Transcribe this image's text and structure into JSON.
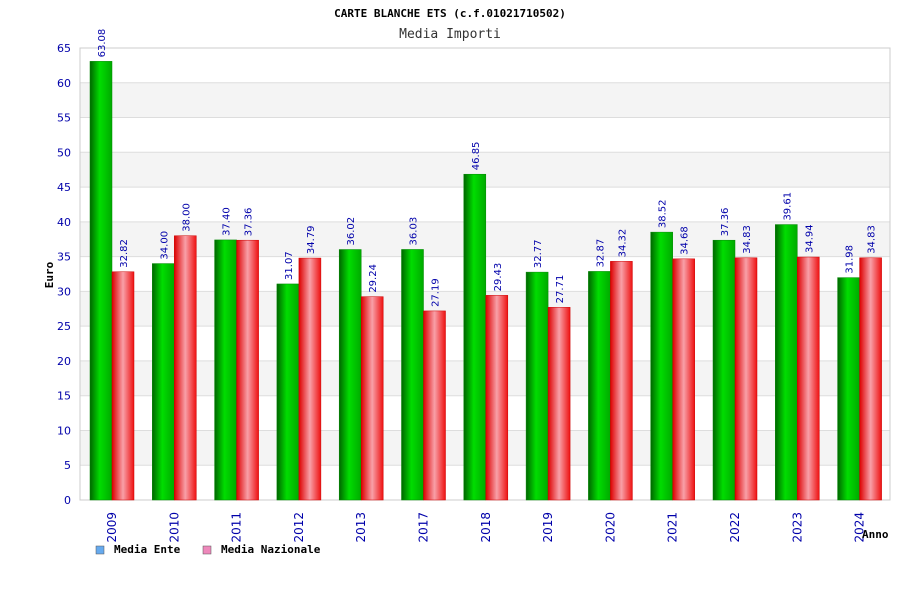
{
  "chart_data": {
    "type": "bar",
    "title": "CARTE BLANCHE ETS (c.f.01021710502)",
    "subtitle": "Media Importi",
    "xlabel": "Anno",
    "ylabel": "Euro",
    "ylim": [
      0,
      65
    ],
    "ytick_step": 5,
    "grid": true,
    "legend_position": "bottom-left",
    "categories": [
      "2009",
      "2010",
      "2011",
      "2012",
      "2013",
      "2017",
      "2018",
      "2019",
      "2020",
      "2021",
      "2022",
      "2023",
      "2024"
    ],
    "series": [
      {
        "name": "Media Ente",
        "color": "#00cc00",
        "legend_color": "#66aaee",
        "values": [
          63.08,
          34.0,
          37.4,
          31.07,
          36.02,
          36.03,
          46.85,
          32.77,
          32.87,
          38.52,
          37.36,
          39.61,
          31.98
        ]
      },
      {
        "name": "Media Nazionale",
        "color": "#ee1111",
        "legend_color": "#ee88bb",
        "values": [
          32.82,
          38.0,
          37.36,
          34.79,
          29.24,
          27.19,
          29.43,
          27.71,
          34.32,
          34.68,
          34.83,
          34.94,
          34.83
        ]
      }
    ]
  }
}
